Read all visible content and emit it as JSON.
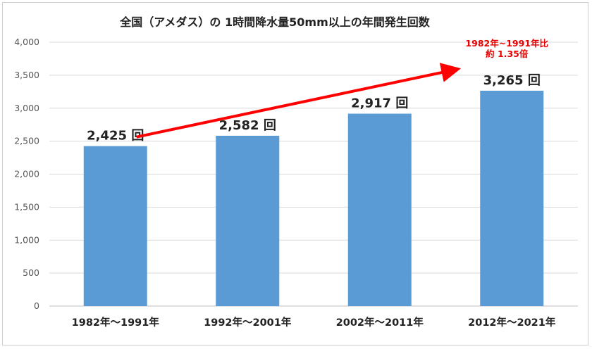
{
  "chart_data": {
    "type": "bar",
    "title": "全国（アメダス）の 1時間降水量50mm以上の年間発生回数",
    "categories": [
      "1982年～1991年",
      "1992年～2001年",
      "2002年～2011年",
      "2012年～2021年"
    ],
    "values": [
      2425,
      2582,
      2917,
      3265
    ],
    "data_labels": [
      "2,425 回",
      "2,582 回",
      "2,917 回",
      "3,265 回"
    ],
    "ylim": [
      0,
      4000
    ],
    "yticks": [
      0,
      500,
      1000,
      1500,
      2000,
      2500,
      3000,
      3500,
      4000
    ],
    "ytick_labels": [
      "0",
      "500",
      "1,000",
      "1,500",
      "2,000",
      "2,500",
      "3,000",
      "3,500",
      "4,000"
    ],
    "grid": true,
    "xlabel": "",
    "ylabel": "",
    "annotation": {
      "line1": "1982年~1991年比",
      "line2": "約 1.35倍",
      "arrow_from_category": 0,
      "arrow_to_category": 3
    },
    "colors": {
      "bar": "#5b9bd5",
      "arrow": "#ff0000",
      "grid": "#d9d9d9",
      "annotation": "#e60000"
    }
  }
}
